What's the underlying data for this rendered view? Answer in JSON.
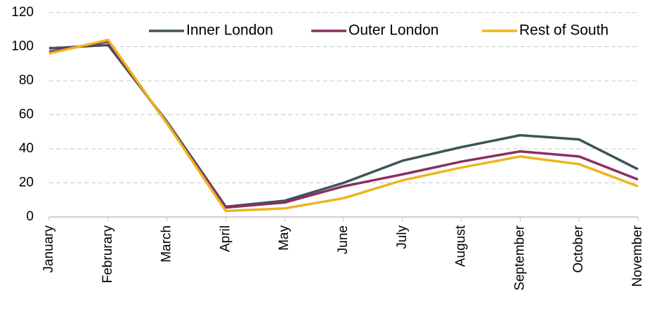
{
  "chart_data": {
    "type": "line",
    "categories": [
      "January",
      "Februrary",
      "March",
      "April",
      "May",
      "June",
      "July",
      "August",
      "September",
      "October",
      "November"
    ],
    "series": [
      {
        "name": "Inner London",
        "color": "#3d5358",
        "values": [
          99,
          101,
          56,
          6,
          9.5,
          20,
          33,
          41,
          48,
          45.5,
          28
        ]
      },
      {
        "name": "Outer London",
        "color": "#8b2e62",
        "values": [
          97,
          103,
          55,
          5.5,
          8.5,
          18,
          25,
          32.5,
          38.5,
          35.5,
          22
        ]
      },
      {
        "name": "Rest of South",
        "color": "#ecb41f",
        "values": [
          96,
          104,
          55,
          3.5,
          5,
          11,
          21.5,
          29,
          35.5,
          31,
          18
        ]
      }
    ],
    "ylim": [
      0,
      120
    ],
    "yticks": [
      0,
      20,
      40,
      60,
      80,
      100,
      120
    ],
    "grid": true,
    "legend": "top-right"
  }
}
